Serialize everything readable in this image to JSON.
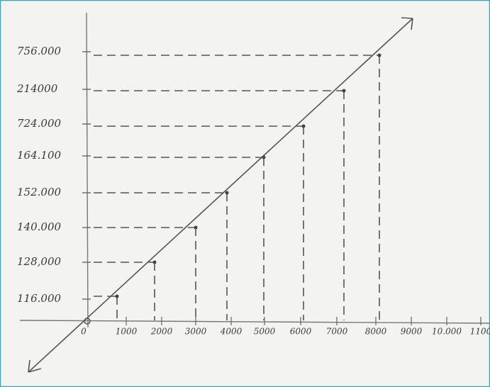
{
  "graph": {
    "y_labels": [
      "756.000",
      "214000",
      "724.000",
      "164.100",
      "152.000",
      "140.000",
      "128,000",
      "116.000"
    ],
    "x_labels": [
      "0",
      "1000",
      "2000",
      "3000",
      "4000",
      "5000",
      "6000",
      "7000",
      "8000",
      "9000",
      "10.000",
      "1100"
    ]
  }
}
